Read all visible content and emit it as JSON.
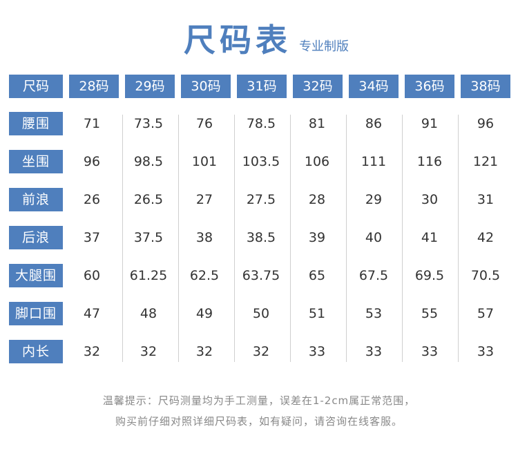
{
  "title": "尺码表",
  "subtitle": "专业制版",
  "header": {
    "label": "尺码",
    "sizes": [
      "28码",
      "29码",
      "30码",
      "31码",
      "32码",
      "34码",
      "36码",
      "38码"
    ]
  },
  "rows": [
    {
      "label": "腰围",
      "values": [
        "71",
        "73.5",
        "76",
        "78.5",
        "81",
        "86",
        "91",
        "96"
      ]
    },
    {
      "label": "坐围",
      "values": [
        "96",
        "98.5",
        "101",
        "103.5",
        "106",
        "111",
        "116",
        "121"
      ]
    },
    {
      "label": "前浪",
      "values": [
        "26",
        "26.5",
        "27",
        "27.5",
        "28",
        "29",
        "30",
        "31"
      ]
    },
    {
      "label": "后浪",
      "values": [
        "37",
        "37.5",
        "38",
        "38.5",
        "39",
        "40",
        "41",
        "42"
      ]
    },
    {
      "label": "大腿围",
      "values": [
        "60",
        "61.25",
        "62.5",
        "63.75",
        "65",
        "67.5",
        "69.5",
        "70.5"
      ]
    },
    {
      "label": "脚口围",
      "values": [
        "47",
        "48",
        "49",
        "50",
        "51",
        "53",
        "55",
        "57"
      ]
    },
    {
      "label": "内长",
      "values": [
        "32",
        "32",
        "32",
        "32",
        "33",
        "33",
        "33",
        "33"
      ]
    }
  ],
  "notes": {
    "line1": "温馨提示：尺码测量均为手工测量，误差在1-2cm属正常范围，",
    "line2": "购买前仔细对照详细尺码表，如有疑问，请咨询在线客服。"
  },
  "colors": {
    "accent": "#4f7fbd",
    "header_text": "#ffffff",
    "value_text": "#333333",
    "note_text": "#888888",
    "divider": "#cfcfcf"
  }
}
